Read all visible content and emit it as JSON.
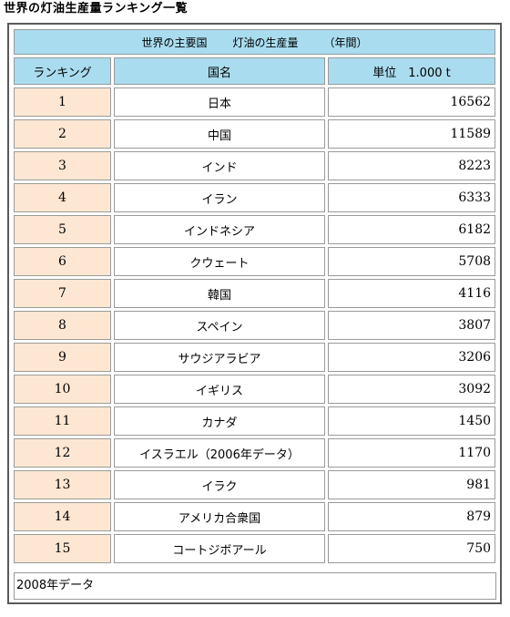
{
  "page_title": "世界の灯油生産量ランキング一覧",
  "table": {
    "caption_parts": [
      "世界の主要国",
      "灯油の生産量",
      "（年間）"
    ],
    "columns": [
      "ランキング",
      "国名",
      "単位　1.000 t"
    ],
    "rows": [
      {
        "rank": "1",
        "country": "日本",
        "value": "16562"
      },
      {
        "rank": "2",
        "country": "中国",
        "value": "11589"
      },
      {
        "rank": "3",
        "country": "インド",
        "value": "8223"
      },
      {
        "rank": "4",
        "country": "イラン",
        "value": "6333"
      },
      {
        "rank": "5",
        "country": "インドネシア",
        "value": "6182"
      },
      {
        "rank": "6",
        "country": "クウェート",
        "value": "5708"
      },
      {
        "rank": "7",
        "country": "韓国",
        "value": "4116"
      },
      {
        "rank": "8",
        "country": "スペイン",
        "value": "3807"
      },
      {
        "rank": "9",
        "country": "サウジアラビア",
        "value": "3206"
      },
      {
        "rank": "10",
        "country": "イギリス",
        "value": "3092"
      },
      {
        "rank": "11",
        "country": "カナダ",
        "value": "1450"
      },
      {
        "rank": "12",
        "country": "イスラエル（2006年データ）",
        "value": "1170"
      },
      {
        "rank": "13",
        "country": "イラク",
        "value": "981"
      },
      {
        "rank": "14",
        "country": "アメリカ合衆国",
        "value": "879"
      },
      {
        "rank": "15",
        "country": "コートジボアール",
        "value": "750"
      }
    ],
    "footnote": "2008年データ"
  },
  "colors": {
    "header_bg": "#a9dcef",
    "rank_bg": "#fde7d3",
    "border": "#9a9a9a"
  }
}
